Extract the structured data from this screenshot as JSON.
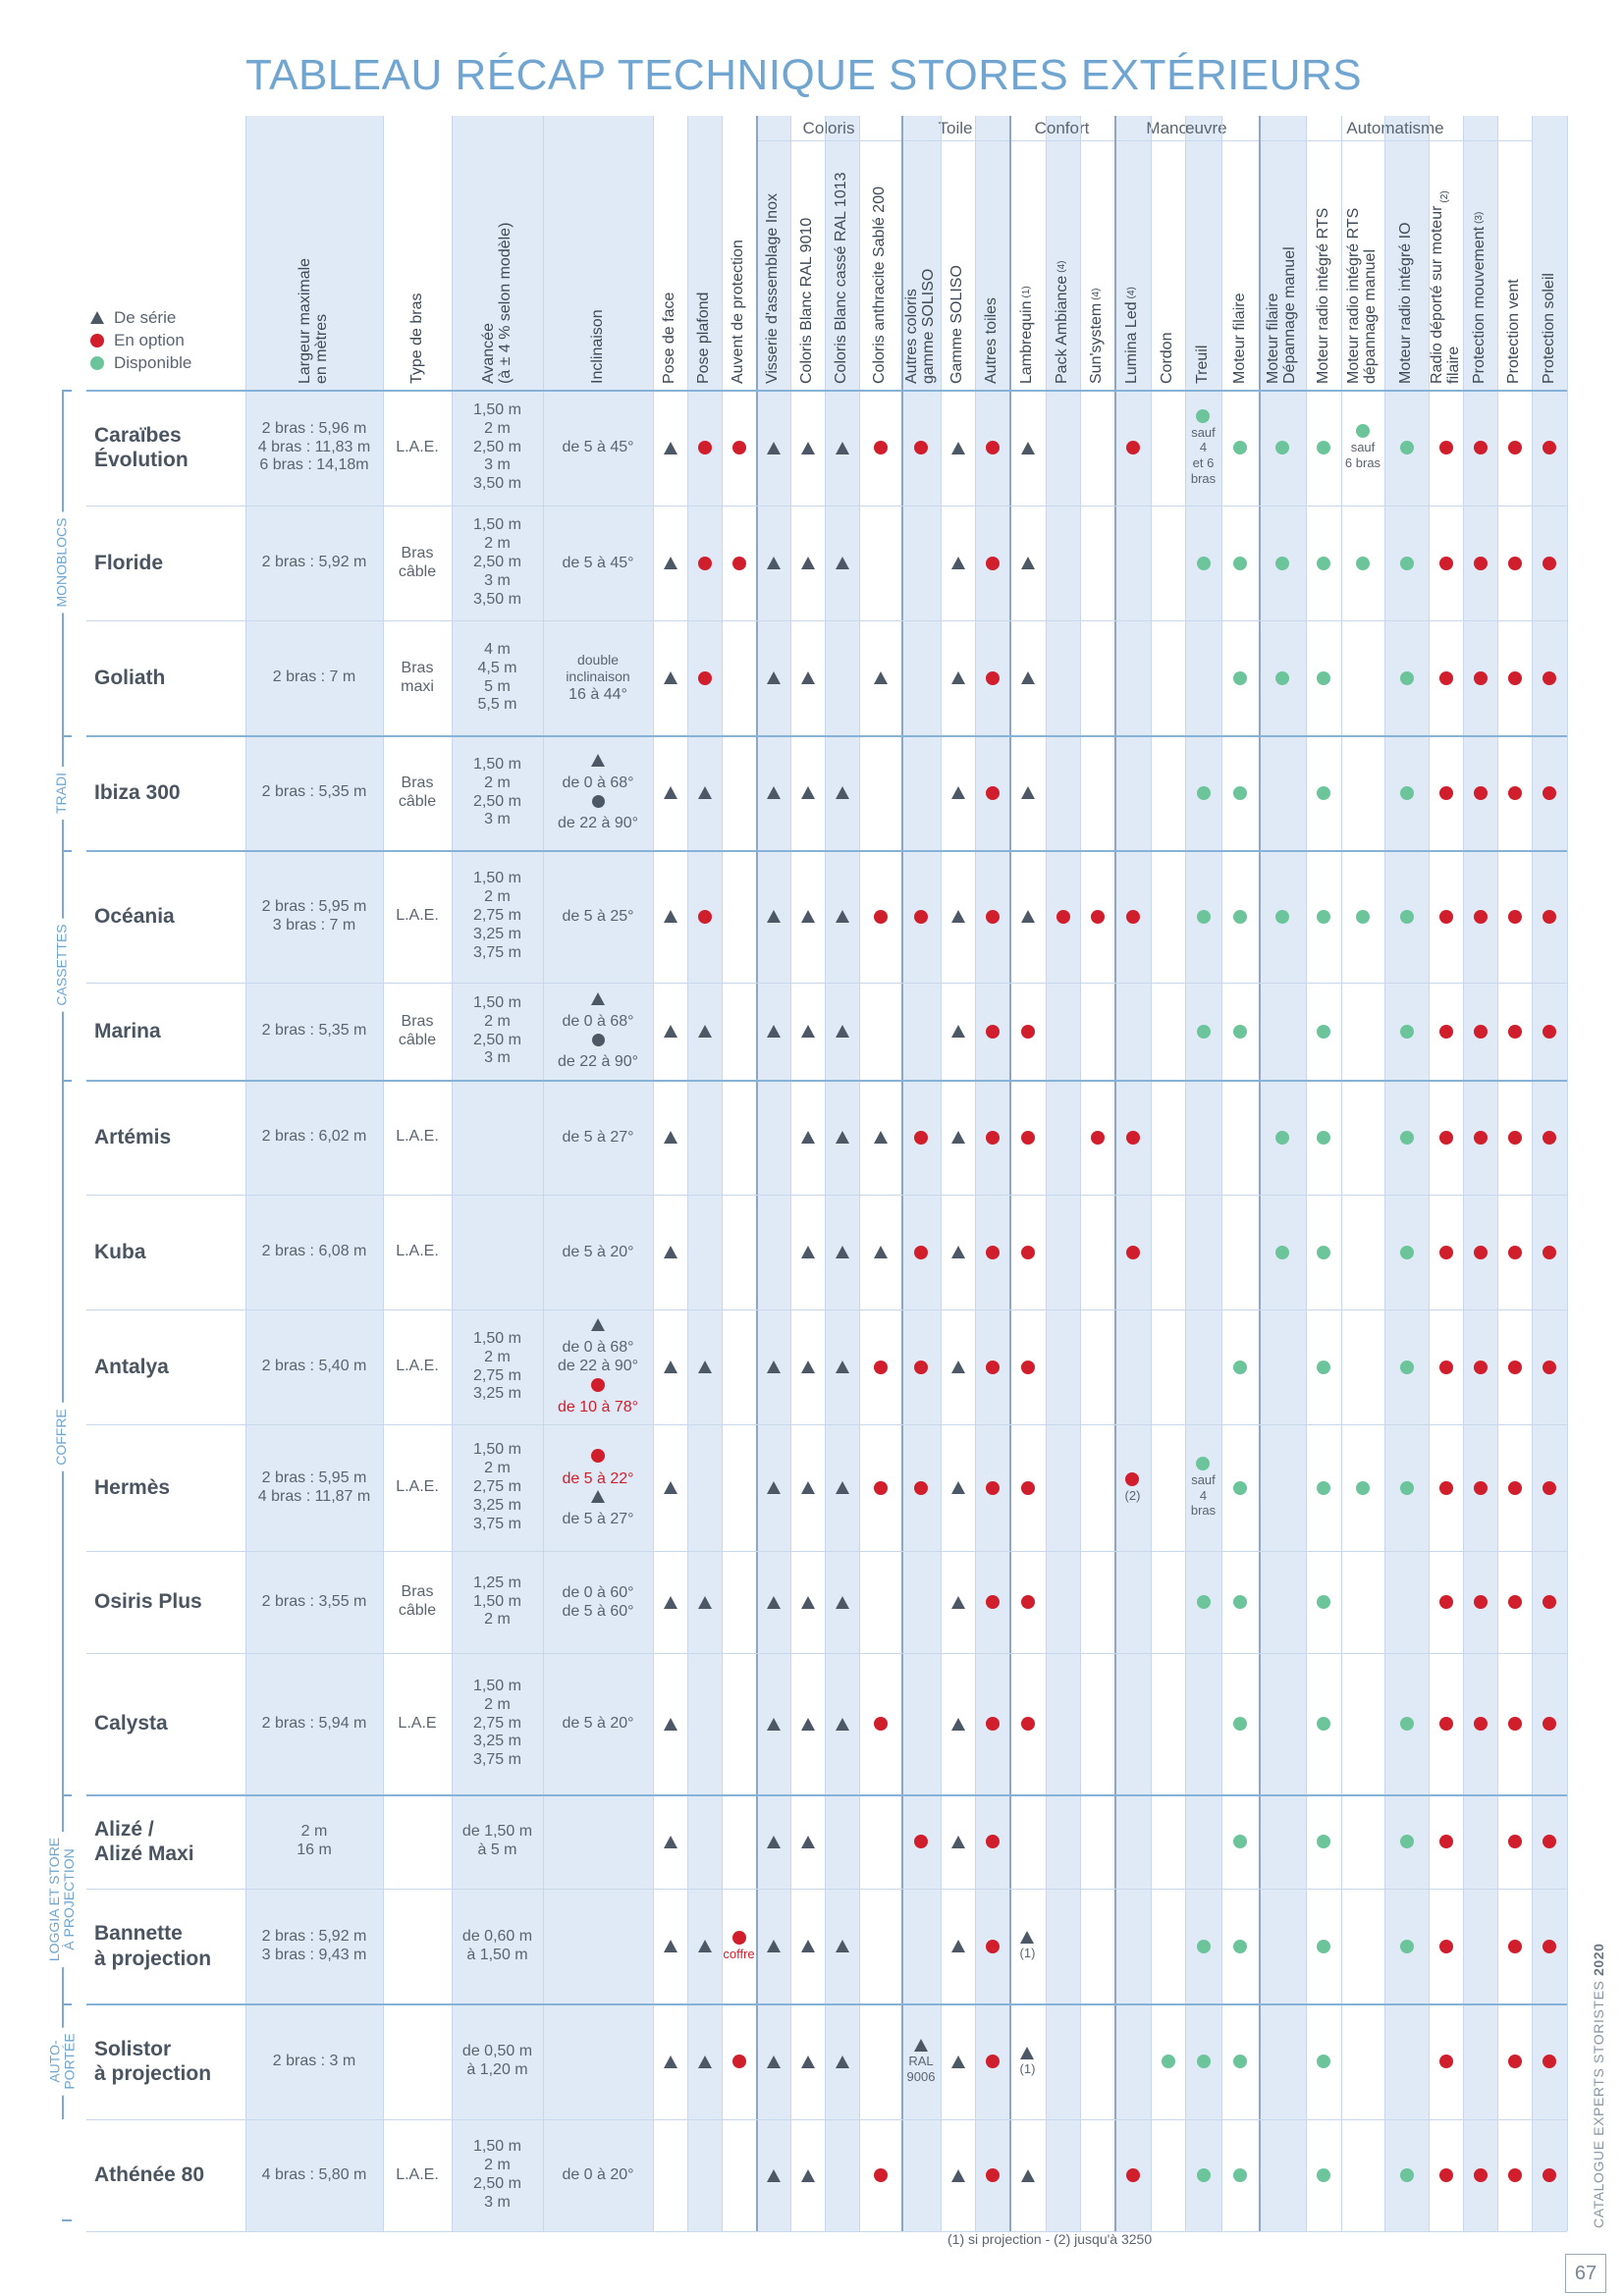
{
  "title": "TABLEAU RÉCAP TECHNIQUE STORES EXTÉRIEURS",
  "colors": {
    "accent_blue": "#6fa5d0",
    "shade": "#e0eaf6",
    "red": "#d01e2c",
    "green": "#6cc59a",
    "dark": "#4d5866"
  },
  "legend": [
    {
      "icon": "triangle-icon",
      "label": "De série"
    },
    {
      "icon": "red-dot-icon",
      "label": "En option"
    },
    {
      "icon": "green-dot-icon",
      "label": "Disponible"
    }
  ],
  "groups": [
    {
      "label": "Coloris",
      "from": 8,
      "to": 11
    },
    {
      "label": "Toile",
      "from": 12,
      "to": 14
    },
    {
      "label": "Confort",
      "from": 15,
      "to": 17
    },
    {
      "label": "Manœuvre",
      "from": 18,
      "to": 21
    },
    {
      "label": "Automatisme",
      "from": 22,
      "to": 28
    }
  ],
  "text_columns": [
    {
      "key": "largeur",
      "label": "Largeur maximale\nen mètres"
    },
    {
      "key": "bras",
      "label": "Type de bras"
    },
    {
      "key": "avancee",
      "label": "Avancée\n(à ± 4 % selon modèle)"
    },
    {
      "key": "inclinaison",
      "label": "Inclinaison"
    }
  ],
  "symbol_columns": [
    {
      "label": "Pose de face"
    },
    {
      "label": "Pose plafond"
    },
    {
      "label": "Auvent de protection"
    },
    {
      "label": "Visserie d'assemblage Inox"
    },
    {
      "label": "Coloris Blanc RAL 9010"
    },
    {
      "label": "Coloris Blanc cassé RAL 1013"
    },
    {
      "label": "Coloris anthracite Sablé 200"
    },
    {
      "label": "Autres coloris\ngamme SOLISO"
    },
    {
      "label": "Gamme SOLISO"
    },
    {
      "label": "Autres toiles"
    },
    {
      "label": "Lambrequin",
      "sup": "(1)"
    },
    {
      "label": "Pack Ambiance",
      "sup": "(4)"
    },
    {
      "label": "Sun'system",
      "sup": "(4)"
    },
    {
      "label": "Lumina Led",
      "sup": "(4)"
    },
    {
      "label": "Cordon"
    },
    {
      "label": "Treuil"
    },
    {
      "label": "Moteur filaire"
    },
    {
      "label": "Moteur filaire\nDépannage manuel"
    },
    {
      "label": "Moteur radio intégré RTS"
    },
    {
      "label": "Moteur radio intégré RTS\ndépannage manuel"
    },
    {
      "label": "Moteur radio intégré IO"
    },
    {
      "label": "Radio déporté sur moteur\nfilaire",
      "sup": "(2)"
    },
    {
      "label": "Protection mouvement",
      "sup": "(3)"
    },
    {
      "label": "Protection vent"
    },
    {
      "label": "Protection soleil"
    }
  ],
  "sections": [
    {
      "label": "MONOBLOCS",
      "from": 0,
      "to": 2
    },
    {
      "label": "TRADI",
      "from": 3,
      "to": 3
    },
    {
      "label": "CASSETTES",
      "from": 4,
      "to": 5
    },
    {
      "label": "COFFRE",
      "from": 6,
      "to": 11
    },
    {
      "label": "LOGGIA ET STORE\nÀ PROJECTION",
      "from": 12,
      "to": 13
    },
    {
      "label": "AUTO-\nPORTÉE",
      "from": 14,
      "to": 14
    }
  ],
  "rows": [
    {
      "name": "Caraïbes\nÉvolution",
      "largeur": "2 bras : 5,96 m\n4 bras : 11,83 m\n6 bras : 14,18m",
      "bras": "L.A.E.",
      "avancee": "1,50 m\n2 m\n2,50 m\n3 m\n3,50 m",
      "inclinaison": {
        "lines": [
          {
            "t": "de 5 à 45°"
          }
        ]
      },
      "cells": [
        "T",
        "R",
        "R",
        "T",
        "T",
        "T",
        "R",
        "R",
        "T",
        "R",
        "T",
        "",
        "",
        "R",
        "",
        "G|sauf\n4\net 6\nbras",
        "G",
        "G",
        "G",
        "G|sauf\n6 bras",
        "G",
        "R",
        "R",
        "R",
        "R"
      ]
    },
    {
      "name": "Floride",
      "largeur": "2 bras : 5,92 m",
      "bras": "Bras\ncâble",
      "avancee": "1,50 m\n2 m\n2,50 m\n3 m\n3,50 m",
      "inclinaison": {
        "lines": [
          {
            "t": "de 5 à 45°"
          }
        ]
      },
      "cells": [
        "T",
        "R",
        "R",
        "T",
        "T",
        "T",
        "",
        "",
        "T",
        "R",
        "T",
        "",
        "",
        "",
        "",
        "G",
        "G",
        "G",
        "G",
        "G",
        "G",
        "R",
        "R",
        "R",
        "R"
      ]
    },
    {
      "name": "Goliath",
      "largeur": "2 bras : 7 m",
      "bras": "Bras\nmaxi",
      "avancee": "4 m\n4,5 m\n5 m\n5,5 m",
      "inclinaison": {
        "lines": [
          {
            "t": "double\ninclinaison",
            "small": true
          },
          {
            "t": "16 à 44°"
          }
        ]
      },
      "cells": [
        "T",
        "R",
        "",
        "T",
        "T",
        "",
        "T",
        "",
        "T",
        "R",
        "T",
        "",
        "",
        "",
        "",
        "",
        "G",
        "G",
        "G",
        "",
        "G",
        "R",
        "R",
        "R",
        "R"
      ]
    },
    {
      "name": "Ibiza 300",
      "largeur": "2 bras : 5,35 m",
      "bras": "Bras\ncâble",
      "avancee": "1,50 m\n2 m\n2,50 m\n3 m",
      "inclinaison": {
        "lines": [
          {
            "m": "T"
          },
          {
            "t": "de 0 à 68°"
          },
          {
            "m": "D"
          },
          {
            "t": "de 22 à 90°"
          }
        ]
      },
      "cells": [
        "T",
        "T",
        "",
        "T",
        "T",
        "T",
        "",
        "",
        "T",
        "R",
        "T",
        "",
        "",
        "",
        "",
        "G",
        "G",
        "",
        "G",
        "",
        "G",
        "R",
        "R",
        "R",
        "R"
      ]
    },
    {
      "name": "Océania",
      "largeur": "2 bras : 5,95 m\n3 bras : 7 m",
      "bras": "L.A.E.",
      "avancee": "1,50 m\n2 m\n2,75 m\n3,25 m\n3,75 m",
      "inclinaison": {
        "lines": [
          {
            "t": "de 5 à 25°"
          }
        ]
      },
      "cells": [
        "T",
        "R",
        "",
        "T",
        "T",
        "T",
        "R",
        "R",
        "T",
        "R",
        "T",
        "R",
        "R",
        "R",
        "",
        "G",
        "G",
        "G",
        "G",
        "G",
        "G",
        "R",
        "R",
        "R",
        "R"
      ]
    },
    {
      "name": "Marina",
      "largeur": "2 bras : 5,35 m",
      "bras": "Bras\ncâble",
      "avancee": "1,50 m\n2 m\n2,50 m\n3 m",
      "inclinaison": {
        "lines": [
          {
            "m": "T"
          },
          {
            "t": "de 0 à 68°"
          },
          {
            "m": "D"
          },
          {
            "t": "de 22 à 90°"
          }
        ]
      },
      "cells": [
        "T",
        "T",
        "",
        "T",
        "T",
        "T",
        "",
        "",
        "T",
        "R",
        "R",
        "",
        "",
        "",
        "",
        "G",
        "G",
        "",
        "G",
        "",
        "G",
        "R",
        "R",
        "R",
        "R"
      ]
    },
    {
      "name": "Artémis",
      "largeur": "2 bras : 6,02 m",
      "bras": "L.A.E.",
      "avancee": "",
      "inclinaison": {
        "lines": [
          {
            "t": "de 5 à 27°"
          }
        ]
      },
      "cells": [
        "T",
        "",
        "",
        "",
        "T",
        "T",
        "T",
        "R",
        "T",
        "R",
        "R",
        "",
        "R",
        "R",
        "",
        "",
        "",
        "G",
        "G",
        "",
        "G",
        "R",
        "R",
        "R",
        "R"
      ]
    },
    {
      "name": "Kuba",
      "largeur": "2 bras : 6,08 m",
      "bras": "L.A.E.",
      "avancee": "",
      "inclinaison": {
        "lines": [
          {
            "t": "de 5 à 20°"
          }
        ]
      },
      "cells": [
        "T",
        "",
        "",
        "",
        "T",
        "T",
        "T",
        "R",
        "T",
        "R",
        "R",
        "",
        "",
        "R",
        "",
        "",
        "",
        "G",
        "G",
        "",
        "G",
        "R",
        "R",
        "R",
        "R"
      ]
    },
    {
      "name": "Antalya",
      "largeur": "2 bras : 5,40 m",
      "bras": "L.A.E.",
      "avancee": "1,50 m\n2 m\n2,75 m\n3,25 m",
      "inclinaison": {
        "lines": [
          {
            "m": "T"
          },
          {
            "t": "de 0 à 68°"
          },
          {
            "t": "de 22 à 90°"
          },
          {
            "m": "R"
          },
          {
            "t": "de 10 à 78°",
            "red": true
          }
        ]
      },
      "cells": [
        "T",
        "T",
        "",
        "T",
        "T",
        "T",
        "R",
        "R",
        "T",
        "R",
        "R",
        "",
        "",
        "",
        "",
        "",
        "G",
        "",
        "G",
        "",
        "G",
        "R",
        "R",
        "R",
        "R"
      ]
    },
    {
      "name": "Hermès",
      "largeur": "2 bras : 5,95 m\n4 bras : 11,87 m",
      "bras": "L.A.E.",
      "avancee": "1,50 m\n2 m\n2,75 m\n3,25 m\n3,75 m",
      "inclinaison": {
        "lines": [
          {
            "m": "R"
          },
          {
            "t": "de 5 à 22°",
            "red": true
          },
          {
            "m": "T"
          },
          {
            "t": "de 5 à 27°"
          }
        ]
      },
      "cells": [
        "T",
        "",
        "",
        "T",
        "T",
        "T",
        "R",
        "R",
        "T",
        "R",
        "R",
        "",
        "",
        "R|(2)",
        "",
        "G|sauf\n4\nbras",
        "G",
        "",
        "G",
        "G",
        "G",
        "R",
        "R",
        "R",
        "R"
      ]
    },
    {
      "name": "Osiris Plus",
      "largeur": "2 bras : 3,55 m",
      "bras": "Bras\ncâble",
      "avancee": "1,25 m\n1,50 m\n2 m",
      "inclinaison": {
        "lines": [
          {
            "t": "de 0 à 60°\nde 5 à 60°"
          }
        ]
      },
      "cells": [
        "T",
        "T",
        "",
        "T",
        "T",
        "T",
        "",
        "",
        "T",
        "R",
        "R",
        "",
        "",
        "",
        "",
        "G",
        "G",
        "",
        "G",
        "",
        "",
        "R",
        "R",
        "R",
        "R"
      ]
    },
    {
      "name": "Calysta",
      "largeur": "2 bras : 5,94 m",
      "bras": "L.A.E",
      "avancee": "1,50 m\n2 m\n2,75 m\n3,25 m\n3,75 m",
      "inclinaison": {
        "lines": [
          {
            "t": "de 5 à 20°"
          }
        ]
      },
      "cells": [
        "T",
        "",
        "",
        "T",
        "T",
        "T",
        "R",
        "",
        "T",
        "R",
        "R",
        "",
        "",
        "",
        "",
        "",
        "G",
        "",
        "G",
        "",
        "G",
        "R",
        "R",
        "R",
        "R"
      ]
    },
    {
      "name": "Alizé /\nAlizé Maxi",
      "largeur": "2 m\n16 m",
      "bras": "",
      "avancee": "de 1,50 m\nà 5 m",
      "inclinaison": {
        "lines": []
      },
      "cells": [
        "T",
        "",
        "",
        "T",
        "T",
        "",
        "",
        "R",
        "T",
        "R",
        "",
        "",
        "",
        "",
        "",
        "",
        "G",
        "",
        "G",
        "",
        "G",
        "R",
        "",
        "R",
        "R"
      ]
    },
    {
      "name": "Bannette\nà projection",
      "largeur": "2 bras : 5,92 m\n3 bras : 9,43 m",
      "bras": "",
      "avancee": "de 0,60 m\nà 1,50 m",
      "inclinaison": {
        "lines": []
      },
      "cells": [
        "T",
        "T",
        "R|coffre",
        "T",
        "T",
        "T",
        "",
        "",
        "T",
        "R",
        "T|(1)",
        "",
        "",
        "",
        "",
        "G",
        "G",
        "",
        "G",
        "",
        "G",
        "R",
        "",
        "R",
        "R"
      ]
    },
    {
      "name": "Solistor\nà projection",
      "largeur": "2 bras : 3 m",
      "bras": "",
      "avancee": "de 0,50 m\nà 1,20 m",
      "inclinaison": {
        "lines": []
      },
      "cells": [
        "T",
        "T",
        "R",
        "T",
        "T",
        "T",
        "",
        "T|RAL\n9006",
        "T",
        "R",
        "T|(1)",
        "",
        "",
        "",
        "G",
        "G",
        "G",
        "",
        "G",
        "",
        "",
        "R",
        "",
        "R",
        "R"
      ]
    },
    {
      "name": "Athénée 80",
      "largeur": "4 bras : 5,80 m",
      "bras": "L.A.E.",
      "avancee": "1,50 m\n2 m\n2,50 m\n3 m",
      "inclinaison": {
        "lines": [
          {
            "t": "de 0 à 20°"
          }
        ]
      },
      "cells": [
        "",
        "",
        "",
        "T",
        "T",
        "",
        "R",
        "",
        "T",
        "R",
        "T",
        "",
        "",
        "R",
        "",
        "G",
        "G",
        "",
        "G",
        "",
        "G",
        "R",
        "R",
        "R",
        "R"
      ]
    }
  ],
  "footnote": "(1) si projection - (2) jusqu'à 3250",
  "catalogue": {
    "label": "CATALOGUE EXPERTS STORISTES",
    "year": "2020"
  },
  "page_number": "67"
}
